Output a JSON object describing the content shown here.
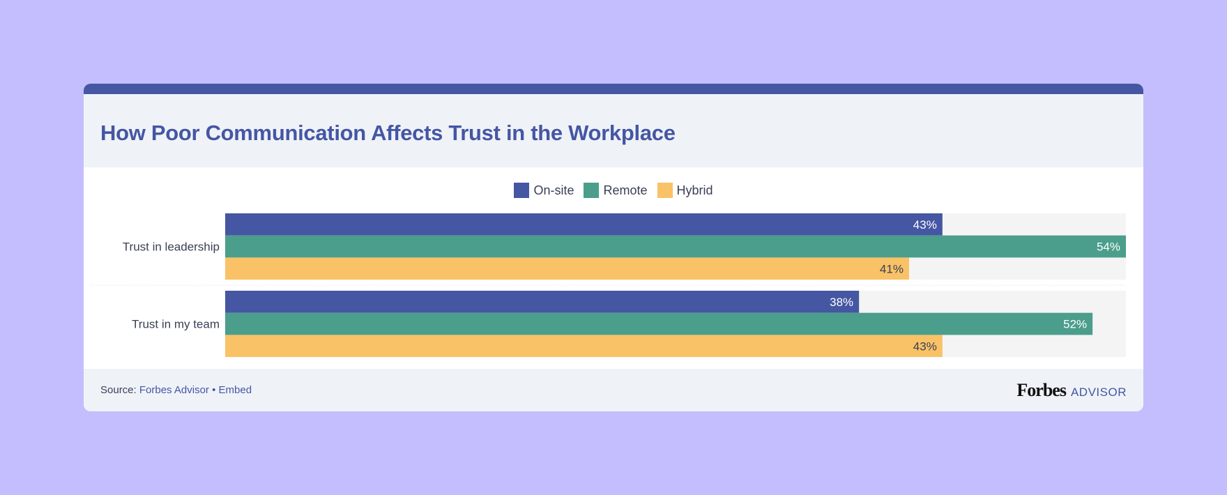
{
  "title": "How Poor Communication Affects Trust in the Workplace",
  "footer": {
    "source_label": "Source:",
    "source_link": "Forbes Advisor",
    "separator": "•",
    "embed_link": "Embed",
    "logo_forbes": "Forbes",
    "logo_advisor": "ADVISOR"
  },
  "chart_data": {
    "type": "bar",
    "orientation": "horizontal",
    "categories": [
      "Trust in leadership",
      "Trust in my team"
    ],
    "series": [
      {
        "name": "On-site",
        "values": [
          43,
          38
        ],
        "color": "#4556a3",
        "label_color": "#ffffff"
      },
      {
        "name": "Remote",
        "values": [
          54,
          52
        ],
        "color": "#4a9e8b",
        "label_color": "#ffffff"
      },
      {
        "name": "Hybrid",
        "values": [
          41,
          43
        ],
        "color": "#f9c266",
        "label_color": "#3a3f55"
      }
    ],
    "value_suffix": "%",
    "xlim": [
      0,
      54
    ],
    "legend": "top-center",
    "grid": false,
    "colors": {
      "background": "#c4bdfe",
      "header": "#eff3f8",
      "track": "#f4f4f4",
      "accent": "#4556a3"
    }
  }
}
